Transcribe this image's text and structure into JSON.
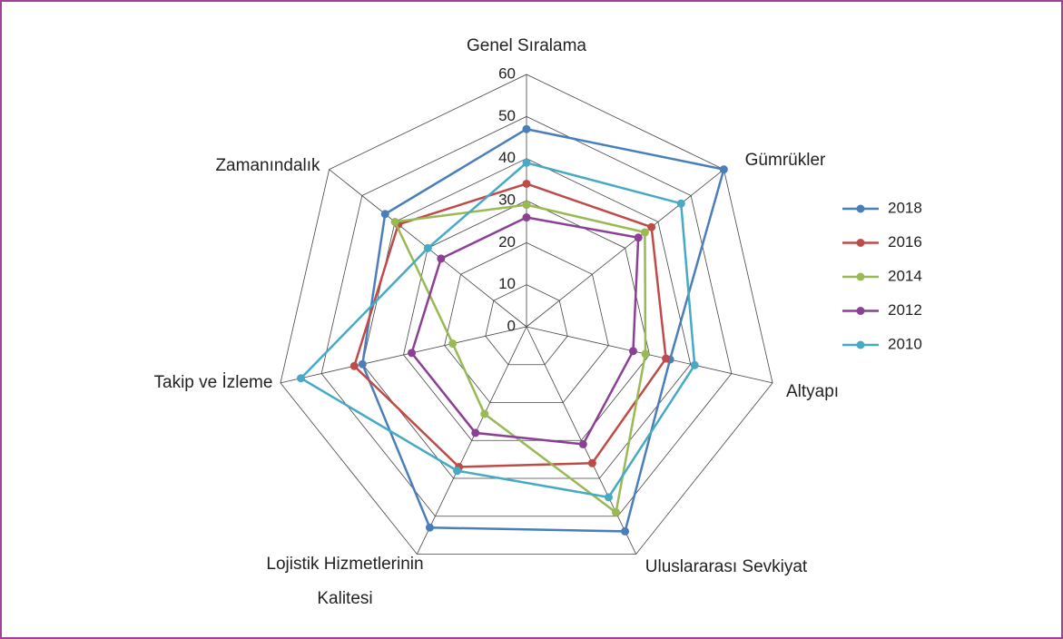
{
  "chart_data": {
    "type": "radar",
    "categories": [
      "Genel Sıralama",
      "Gümrükler",
      "Altyapı",
      "Uluslararası Sevkiyat",
      "Lojistik Hizmetlerinin Kalitesi",
      "Takip ve İzleme",
      "Zamanındalık"
    ],
    "series": [
      {
        "name": "2018",
        "color": "#4a7ebb",
        "values": [
          47,
          60,
          35,
          54,
          53,
          40,
          43
        ]
      },
      {
        "name": "2016",
        "color": "#be4b48",
        "values": [
          34,
          38,
          34,
          36,
          37,
          42,
          39
        ]
      },
      {
        "name": "2014",
        "color": "#98b954",
        "values": [
          29,
          36,
          29,
          49,
          23,
          18,
          40
        ]
      },
      {
        "name": "2012",
        "color": "#8b3f95",
        "values": [
          26,
          34,
          26,
          31,
          28,
          28,
          26
        ]
      },
      {
        "name": "2010",
        "color": "#46aac5",
        "values": [
          39,
          47,
          41,
          45,
          38,
          55,
          30
        ]
      }
    ],
    "ylim": [
      0,
      60
    ],
    "yticks": [
      0,
      10,
      20,
      30,
      40,
      50,
      60
    ],
    "grid": true,
    "legend": "right"
  }
}
